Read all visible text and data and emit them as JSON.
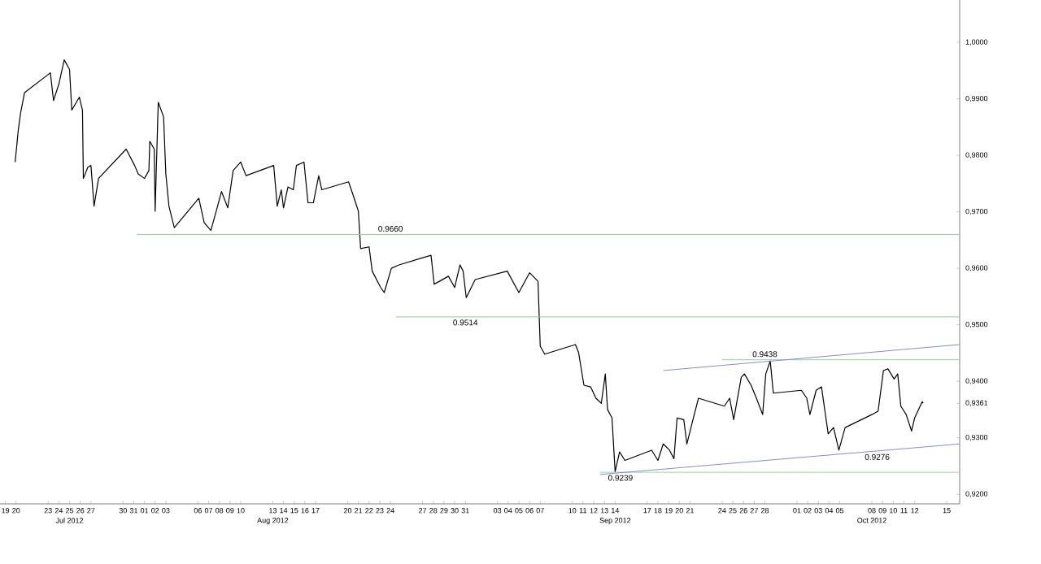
{
  "chart_data": {
    "type": "line",
    "xlim": [
      "2012-07-18T12:00",
      "2012-10-16T05:00"
    ],
    "ylim": [
      0.9183,
      1.0075
    ],
    "yticks": [
      {
        "value": 0.92,
        "label": "0,9200"
      },
      {
        "value": 0.93,
        "label": "0,9300"
      },
      {
        "value": 0.9361,
        "label": "0,9361"
      },
      {
        "value": 0.94,
        "label": "0,9400"
      },
      {
        "value": 0.95,
        "label": "0,9500"
      },
      {
        "value": 0.96,
        "label": "0,9600"
      },
      {
        "value": 0.97,
        "label": "0,9700"
      },
      {
        "value": 0.98,
        "label": "0,9800"
      },
      {
        "value": 0.99,
        "label": "0,9900"
      },
      {
        "value": 1.0,
        "label": "1,0000"
      }
    ],
    "xticks": [
      {
        "value": "2012-07-19",
        "label": "19"
      },
      {
        "value": "2012-07-20",
        "label": "20"
      },
      {
        "value": "2012-07-23",
        "label": "23"
      },
      {
        "value": "2012-07-24",
        "label": "24"
      },
      {
        "value": "2012-07-25",
        "label": "25"
      },
      {
        "value": "2012-07-26",
        "label": "26"
      },
      {
        "value": "2012-07-27",
        "label": "27"
      },
      {
        "value": "2012-07-30",
        "label": "30"
      },
      {
        "value": "2012-07-31",
        "label": "31"
      },
      {
        "value": "2012-08-01",
        "label": "01"
      },
      {
        "value": "2012-08-02",
        "label": "02"
      },
      {
        "value": "2012-08-03",
        "label": "03"
      },
      {
        "value": "2012-08-06",
        "label": "06"
      },
      {
        "value": "2012-08-07",
        "label": "07"
      },
      {
        "value": "2012-08-08",
        "label": "08"
      },
      {
        "value": "2012-08-09",
        "label": "09"
      },
      {
        "value": "2012-08-10",
        "label": "10"
      },
      {
        "value": "2012-08-13",
        "label": "13"
      },
      {
        "value": "2012-08-14",
        "label": "14"
      },
      {
        "value": "2012-08-15",
        "label": "15"
      },
      {
        "value": "2012-08-16",
        "label": "16"
      },
      {
        "value": "2012-08-17",
        "label": "17"
      },
      {
        "value": "2012-08-20",
        "label": "20"
      },
      {
        "value": "2012-08-21",
        "label": "21"
      },
      {
        "value": "2012-08-22",
        "label": "22"
      },
      {
        "value": "2012-08-23",
        "label": "23"
      },
      {
        "value": "2012-08-24",
        "label": "24"
      },
      {
        "value": "2012-08-27",
        "label": "27"
      },
      {
        "value": "2012-08-28",
        "label": "28"
      },
      {
        "value": "2012-08-29",
        "label": "29"
      },
      {
        "value": "2012-08-30",
        "label": "30"
      },
      {
        "value": "2012-08-31",
        "label": "31"
      },
      {
        "value": "2012-09-03",
        "label": "03"
      },
      {
        "value": "2012-09-04",
        "label": "04"
      },
      {
        "value": "2012-09-05",
        "label": "05"
      },
      {
        "value": "2012-09-06",
        "label": "06"
      },
      {
        "value": "2012-09-07",
        "label": "07"
      },
      {
        "value": "2012-09-10",
        "label": "10"
      },
      {
        "value": "2012-09-11",
        "label": "11"
      },
      {
        "value": "2012-09-12",
        "label": "12"
      },
      {
        "value": "2012-09-13",
        "label": "13"
      },
      {
        "value": "2012-09-14",
        "label": "14"
      },
      {
        "value": "2012-09-17",
        "label": "17"
      },
      {
        "value": "2012-09-18",
        "label": "18"
      },
      {
        "value": "2012-09-19",
        "label": "19"
      },
      {
        "value": "2012-09-20",
        "label": "20"
      },
      {
        "value": "2012-09-21",
        "label": "21"
      },
      {
        "value": "2012-09-24",
        "label": "24"
      },
      {
        "value": "2012-09-25",
        "label": "25"
      },
      {
        "value": "2012-09-26",
        "label": "26"
      },
      {
        "value": "2012-09-27",
        "label": "27"
      },
      {
        "value": "2012-09-28",
        "label": "28"
      },
      {
        "value": "2012-10-01",
        "label": "01"
      },
      {
        "value": "2012-10-02",
        "label": "02"
      },
      {
        "value": "2012-10-03",
        "label": "03"
      },
      {
        "value": "2012-10-04",
        "label": "04"
      },
      {
        "value": "2012-10-05",
        "label": "05"
      },
      {
        "value": "2012-10-08",
        "label": "08"
      },
      {
        "value": "2012-10-09",
        "label": "09"
      },
      {
        "value": "2012-10-10",
        "label": "10"
      },
      {
        "value": "2012-10-11",
        "label": "11"
      },
      {
        "value": "2012-10-12",
        "label": "12"
      },
      {
        "value": "2012-10-15",
        "label": "15"
      }
    ],
    "x2lim": [
      "2012-07-18T12:00",
      "2012-10-16T05:00"
    ],
    "x2ticks": [
      {
        "value": "2012-07-25",
        "label": "Jul 2012"
      },
      {
        "value": "2012-08-13",
        "label": "Aug 2012"
      },
      {
        "value": "2012-09-14",
        "label": "Sep 2012"
      },
      {
        "value": "2012-10-08",
        "label": "Oct 2012"
      }
    ],
    "series": [
      {
        "color": "#000000",
        "x": [
          "2012-07-19T22:00",
          "2012-07-20T05:00",
          "2012-07-20T10:00",
          "2012-07-20T19:00",
          "2012-07-23T05:00",
          "2012-07-23T12:00",
          "2012-07-24T00:00",
          "2012-07-24T12:00",
          "2012-07-25T00:00",
          "2012-07-25T05:00",
          "2012-07-25T22:00",
          "2012-07-26T05:00",
          "2012-07-26T07:00",
          "2012-07-26T17:00",
          "2012-07-27T00:00",
          "2012-07-27T07:00",
          "2012-07-27T17:00",
          "2012-07-30T07:00",
          "2012-07-31T02:00",
          "2012-07-31T10:00",
          "2012-08-01T00:00",
          "2012-08-01T10:00",
          "2012-08-01T12:00",
          "2012-08-01T22:00",
          "2012-08-02T00:00",
          "2012-08-02T07:00",
          "2012-08-02T19:00",
          "2012-08-03T00:00",
          "2012-08-03T07:00",
          "2012-08-03T19:00",
          "2012-08-06T02:00",
          "2012-08-06T14:00",
          "2012-08-07T05:00",
          "2012-08-07T17:00",
          "2012-08-08T05:00",
          "2012-08-08T19:00",
          "2012-08-09T07:00",
          "2012-08-10T00:00",
          "2012-08-10T12:00",
          "2012-08-13T02:00",
          "2012-08-13T10:00",
          "2012-08-13T19:00",
          "2012-08-14T00:00",
          "2012-08-14T10:00",
          "2012-08-14T22:00",
          "2012-08-15T05:00",
          "2012-08-15T22:00",
          "2012-08-16T07:00",
          "2012-08-16T19:00",
          "2012-08-17T07:00",
          "2012-08-17T14:00",
          "2012-08-20T02:00",
          "2012-08-20T12:00",
          "2012-08-21T00:00",
          "2012-08-21T05:00",
          "2012-08-22T00:00",
          "2012-08-22T07:00",
          "2012-08-23T02:00",
          "2012-08-23T10:00",
          "2012-08-24T02:00",
          "2012-08-24T19:00",
          "2012-08-27T19:00",
          "2012-08-28T02:00",
          "2012-08-28T14:00",
          "2012-08-29T10:00",
          "2012-08-30T00:00",
          "2012-08-30T12:00",
          "2012-08-30T19:00",
          "2012-08-31T02:00",
          "2012-08-31T22:00",
          "2012-09-03T22:00",
          "2012-09-05T00:00",
          "2012-09-06T00:00",
          "2012-09-06T19:00",
          "2012-09-07T00:00",
          "2012-09-07T10:00",
          "2012-09-10T07:00",
          "2012-09-10T14:00",
          "2012-09-11T02:00",
          "2012-09-11T17:00",
          "2012-09-12T05:00",
          "2012-09-12T17:00",
          "2012-09-13T02:00",
          "2012-09-13T07:00",
          "2012-09-13T17:00",
          "2012-09-14T00:00",
          "2012-09-14T10:00",
          "2012-09-14T22:00",
          "2012-09-17T10:00",
          "2012-09-18T00:00",
          "2012-09-18T12:00",
          "2012-09-19T02:00",
          "2012-09-19T12:00",
          "2012-09-19T19:00",
          "2012-09-20T10:00",
          "2012-09-20T17:00",
          "2012-09-21T05:00",
          "2012-09-21T19:00",
          "2012-09-24T05:00",
          "2012-09-24T17:00",
          "2012-09-25T02:00",
          "2012-09-25T19:00",
          "2012-09-26T02:00",
          "2012-09-26T17:00",
          "2012-09-27T05:00",
          "2012-09-27T19:00",
          "2012-09-28T02:00",
          "2012-09-28T12:00",
          "2012-09-28T19:00",
          "2012-10-01T10:00",
          "2012-10-01T22:00",
          "2012-10-02T05:00",
          "2012-10-02T19:00",
          "2012-10-03T07:00",
          "2012-10-03T22:00",
          "2012-10-04T10:00",
          "2012-10-04T22:00",
          "2012-10-05T12:00",
          "2012-10-08T00:00",
          "2012-10-08T14:00",
          "2012-10-09T02:00",
          "2012-10-09T12:00",
          "2012-10-10T02:00",
          "2012-10-10T10:00",
          "2012-10-10T17:00",
          "2012-10-11T05:00",
          "2012-10-11T17:00",
          "2012-10-12T00:00",
          "2012-10-12T07:00",
          "2012-10-12T17:00",
          "2012-10-12T19:00"
        ],
        "values": [
          0.9788,
          0.9845,
          0.9874,
          0.9911,
          0.9946,
          0.9897,
          0.9926,
          0.9969,
          0.9952,
          0.988,
          0.9903,
          0.988,
          0.9759,
          0.9779,
          0.9782,
          0.971,
          0.9759,
          0.9811,
          0.9782,
          0.9767,
          0.9759,
          0.9773,
          0.9825,
          0.9811,
          0.9701,
          0.9894,
          0.9868,
          0.9767,
          0.971,
          0.9672,
          0.9724,
          0.9681,
          0.9667,
          0.9701,
          0.9736,
          0.9707,
          0.9773,
          0.9788,
          0.9764,
          0.9782,
          0.971,
          0.9739,
          0.9707,
          0.9744,
          0.9739,
          0.9782,
          0.9788,
          0.9716,
          0.9716,
          0.9764,
          0.9739,
          0.9753,
          0.973,
          0.9701,
          0.9635,
          0.9638,
          0.9595,
          0.9566,
          0.9557,
          0.96,
          0.9606,
          0.9623,
          0.9572,
          0.9577,
          0.9586,
          0.9566,
          0.9606,
          0.9595,
          0.9548,
          0.958,
          0.9595,
          0.9557,
          0.9592,
          0.9577,
          0.9462,
          0.9448,
          0.9465,
          0.9451,
          0.9393,
          0.939,
          0.937,
          0.9361,
          0.9413,
          0.935,
          0.9335,
          0.924,
          0.9275,
          0.926,
          0.9278,
          0.926,
          0.9289,
          0.9278,
          0.9263,
          0.9335,
          0.9332,
          0.9289,
          0.9327,
          0.937,
          0.9356,
          0.937,
          0.9332,
          0.9407,
          0.9413,
          0.9393,
          0.937,
          0.9341,
          0.9413,
          0.9436,
          0.9379,
          0.9384,
          0.937,
          0.9341,
          0.9384,
          0.939,
          0.9307,
          0.9318,
          0.9278,
          0.9318,
          0.9341,
          0.9347,
          0.9419,
          0.9422,
          0.9404,
          0.9413,
          0.9356,
          0.9341,
          0.9312,
          0.9335,
          0.9347,
          0.9364,
          0.9361
        ]
      },
      {
        "type": "line",
        "color": "#90d090",
        "x": [
          "2012-07-31T07:00",
          "2012-10-16T05:00"
        ],
        "values": [
          0.966,
          0.966
        ]
      },
      {
        "type": "line",
        "color": "#90d090",
        "x": [
          "2012-08-24T12:00",
          "2012-10-16T05:00"
        ],
        "values": [
          0.9514,
          0.9514
        ]
      },
      {
        "type": "line",
        "color": "#90d090",
        "x": [
          "2012-09-24T00:00",
          "2012-10-16T05:00"
        ],
        "values": [
          0.9438,
          0.9438
        ]
      },
      {
        "type": "line",
        "color": "#90d090",
        "x": [
          "2012-09-12T14:00",
          "2012-10-16T05:00"
        ],
        "values": [
          0.9239,
          0.9239
        ]
      },
      {
        "type": "line",
        "color": "#8888dd",
        "x": [
          "2012-09-18T12:00",
          "2012-10-16T05:00"
        ],
        "values": [
          0.9419,
          0.9465
        ]
      },
      {
        "type": "line",
        "color": "#8888dd",
        "x": [
          "2012-09-12T14:00",
          "2012-10-16T05:00"
        ],
        "values": [
          0.9235,
          0.9289
        ]
      }
    ],
    "annotations": [
      {
        "text": "0.9660",
        "x": "2012-08-24T00:00",
        "y": 0.966
      },
      {
        "text": "0.9514",
        "x": "2012-08-31T00:00",
        "y": 0.9514
      },
      {
        "text": "0.9438",
        "x": "2012-09-28T00:00",
        "y": 0.9438
      },
      {
        "text": "0.9239",
        "x": "2012-09-14T12:00",
        "y": 0.9239
      },
      {
        "text": "0.9276",
        "x": "2012-10-08T12:00",
        "y": 0.9276
      }
    ]
  }
}
